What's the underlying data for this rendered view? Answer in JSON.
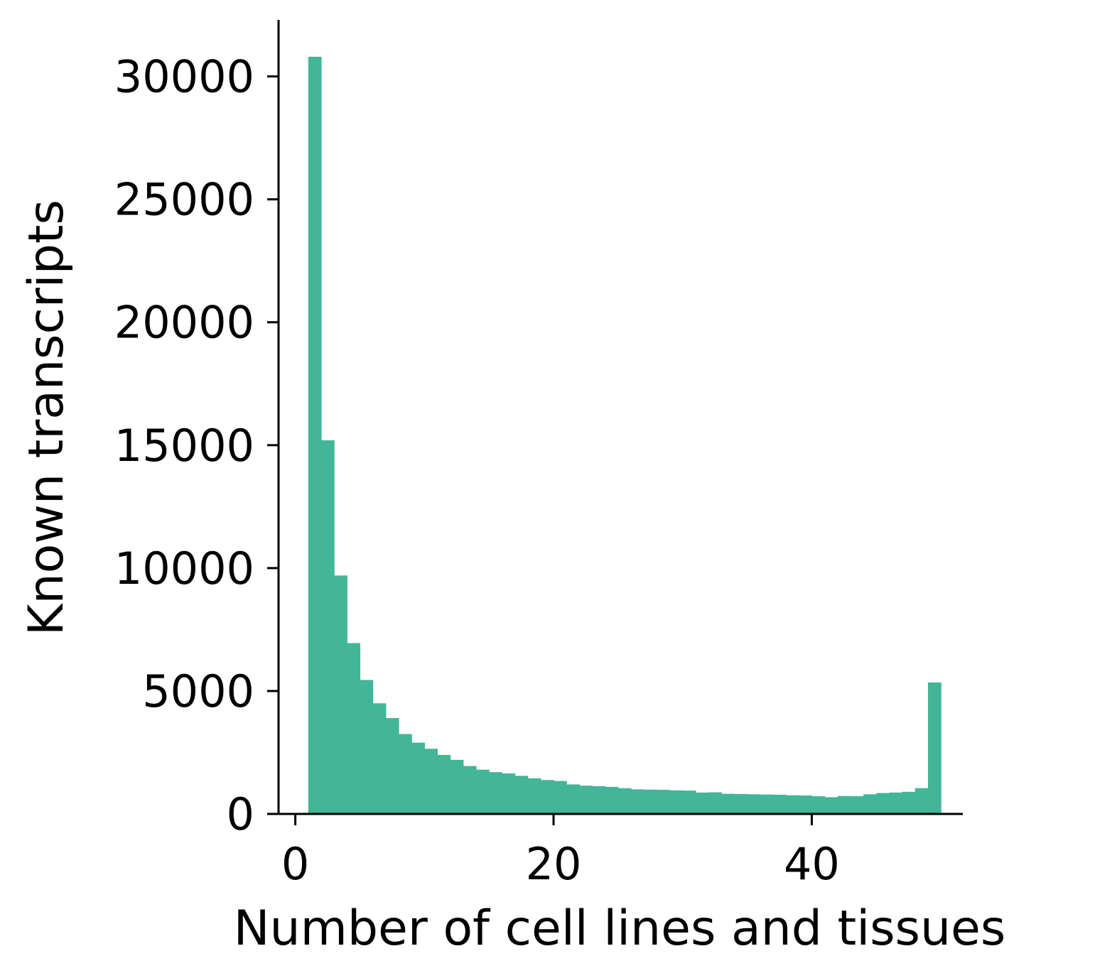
{
  "chart_data": {
    "type": "bar",
    "subtype": "histogram",
    "title": "",
    "xlabel": "Number of cell lines and tissues",
    "ylabel": "Known transcripts",
    "xlim": [
      -1.3,
      51.7
    ],
    "ylim": [
      0,
      32300
    ],
    "xticks": [
      0,
      20,
      40
    ],
    "yticks": [
      0,
      5000,
      10000,
      15000,
      20000,
      25000,
      30000
    ],
    "grid": false,
    "legend": "none",
    "bar_color": "#42b697",
    "bin_edges": [
      1,
      2,
      3,
      4,
      5,
      6,
      7,
      8,
      9,
      10,
      11,
      12,
      13,
      14,
      15,
      16,
      17,
      18,
      19,
      20,
      21,
      22,
      23,
      24,
      25,
      26,
      27,
      28,
      29,
      30,
      31,
      32,
      33,
      34,
      35,
      36,
      37,
      38,
      39,
      40,
      41,
      42,
      43,
      44,
      45,
      46,
      47,
      48,
      49,
      50
    ],
    "values": [
      30800,
      15200,
      9700,
      6950,
      5450,
      4500,
      3900,
      3250,
      2900,
      2650,
      2400,
      2200,
      1950,
      1800,
      1700,
      1650,
      1550,
      1450,
      1380,
      1340,
      1200,
      1150,
      1130,
      1100,
      1050,
      1000,
      990,
      980,
      960,
      950,
      870,
      880,
      820,
      810,
      800,
      790,
      780,
      760,
      750,
      720,
      680,
      730,
      720,
      800,
      850,
      870,
      900,
      1050,
      5350
    ]
  }
}
